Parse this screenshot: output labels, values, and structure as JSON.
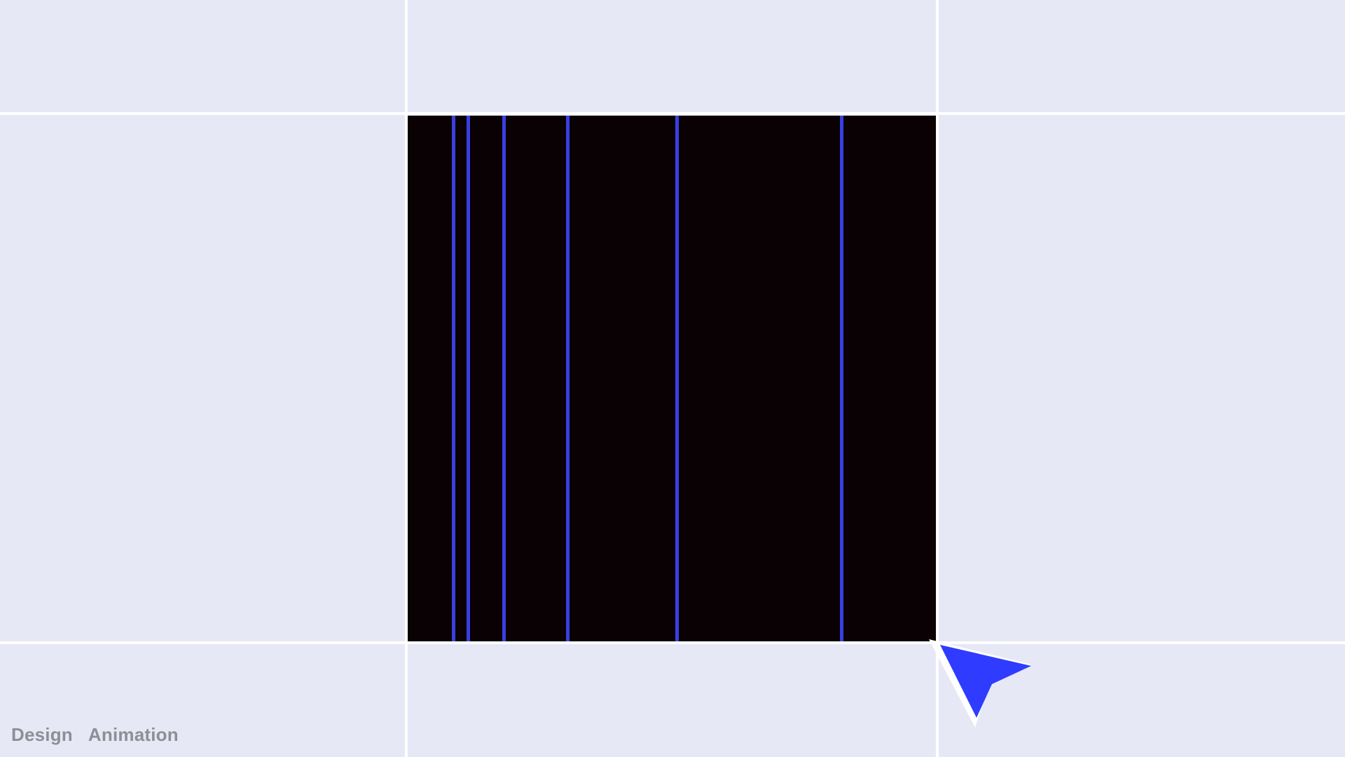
{
  "tabs": {
    "design": "Design",
    "animation": "Animation"
  },
  "colors": {
    "background": "#e7e8f5",
    "grid": "#ffffff",
    "canvas": "#0a0105",
    "stripe": "#3a3fe0",
    "cursor": "#2f3cff",
    "tab_text": "#8e8e97"
  },
  "icons": {
    "cursor": "pointer-cursor-icon"
  }
}
